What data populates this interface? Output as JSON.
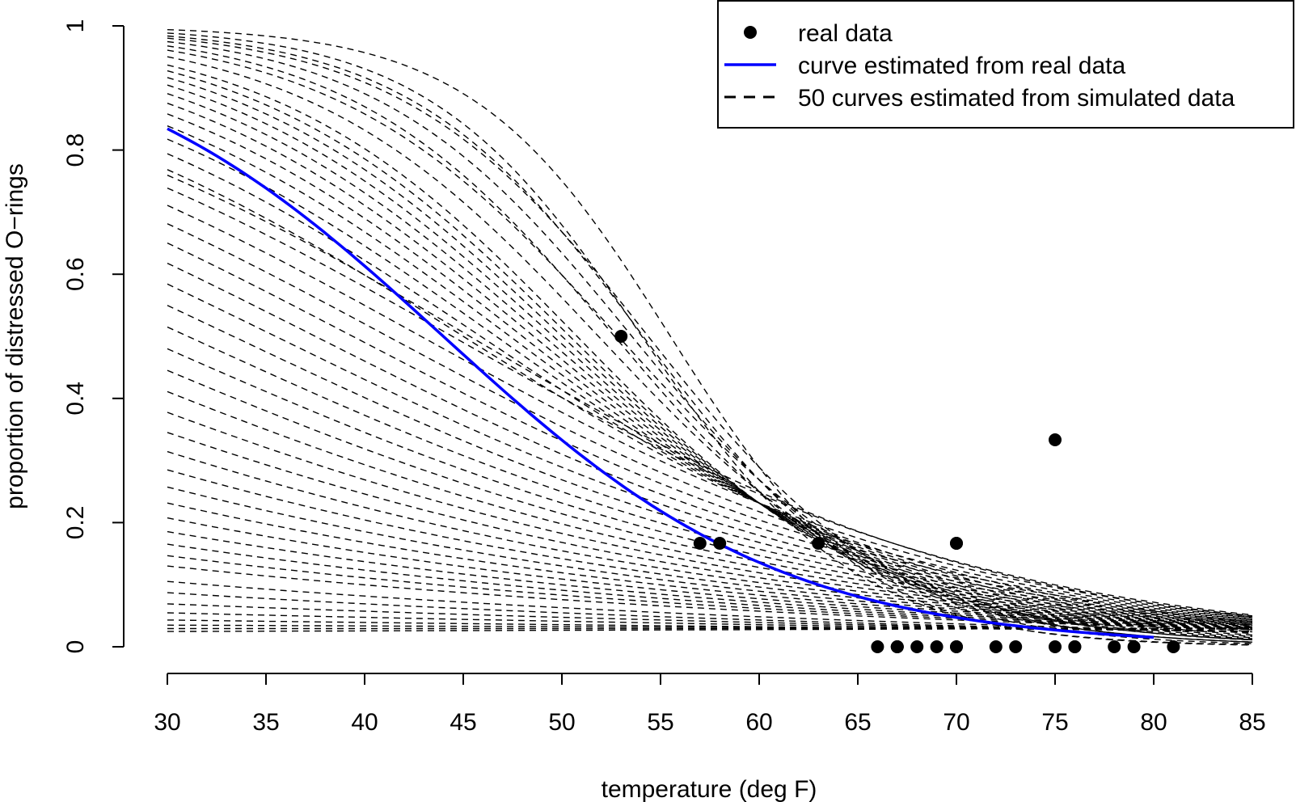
{
  "chart_data": {
    "type": "line",
    "xlabel": "temperature (deg F)",
    "ylabel": "proportion of distressed O−rings",
    "xlim": [
      30,
      85
    ],
    "ylim": [
      0,
      1
    ],
    "x_ticks": [
      "30",
      "35",
      "40",
      "45",
      "50",
      "55",
      "60",
      "65",
      "70",
      "75",
      "80",
      "85"
    ],
    "y_ticks": [
      "0",
      "0.2",
      "0.4",
      "0.6",
      "0.8",
      "1"
    ],
    "grid": false,
    "legend": {
      "placement": "top-right",
      "entries": [
        {
          "label": "real data",
          "style": "point"
        },
        {
          "label": "curve estimated from real data",
          "style": "solid",
          "color": "#0000ff"
        },
        {
          "label": "50 curves estimated from simulated data",
          "style": "dashed",
          "color": "#000000"
        }
      ]
    },
    "real_data": {
      "name": "real data",
      "x": [
        53,
        57,
        58,
        63,
        66,
        67,
        67,
        67,
        68,
        69,
        70,
        70,
        70,
        70,
        72,
        73,
        75,
        75,
        76,
        76,
        78,
        79,
        81
      ],
      "y": [
        0.5,
        0.1667,
        0.1667,
        0.1667,
        0,
        0,
        0,
        0,
        0,
        0,
        0,
        0.1667,
        0,
        0.1667,
        0,
        0,
        0,
        0.3333,
        0,
        0,
        0,
        0,
        0
      ]
    },
    "fitted_curve": {
      "name": "curve estimated from real data",
      "model": "logistic",
      "intercept": 5.085,
      "slope": -0.1156,
      "x_range": [
        30,
        80
      ],
      "color": "#0000ff"
    },
    "simulated_curves": {
      "name": "50 curves estimated from simulated data",
      "model": "logistic",
      "x_range": [
        30,
        85
      ],
      "color": "#000000",
      "params": [
        [
          11.1,
          -0.2
        ],
        [
          10.0,
          -0.185
        ],
        [
          9.2,
          -0.17
        ],
        [
          8.7,
          -0.16
        ],
        [
          8.3,
          -0.155
        ],
        [
          7.9,
          -0.15
        ],
        [
          7.4,
          -0.14
        ],
        [
          7.0,
          -0.135
        ],
        [
          6.6,
          -0.13
        ],
        [
          6.3,
          -0.125
        ],
        [
          6.0,
          -0.12
        ],
        [
          5.7,
          -0.115
        ],
        [
          5.4,
          -0.11
        ],
        [
          5.1,
          -0.105
        ],
        [
          4.8,
          -0.1
        ],
        [
          4.5,
          -0.095
        ],
        [
          4.2,
          -0.09
        ],
        [
          3.9,
          -0.085
        ],
        [
          3.6,
          -0.08
        ],
        [
          3.4,
          -0.075
        ],
        [
          3.2,
          -0.072
        ],
        [
          3.0,
          -0.07
        ],
        [
          2.8,
          -0.068
        ],
        [
          2.6,
          -0.066
        ],
        [
          2.4,
          -0.064
        ],
        [
          2.2,
          -0.062
        ],
        [
          2.0,
          -0.06
        ],
        [
          1.8,
          -0.058
        ],
        [
          1.6,
          -0.056
        ],
        [
          1.4,
          -0.054
        ],
        [
          1.2,
          -0.052
        ],
        [
          1.0,
          -0.05
        ],
        [
          0.8,
          -0.048
        ],
        [
          0.6,
          -0.046
        ],
        [
          0.4,
          -0.044
        ],
        [
          0.2,
          -0.042
        ],
        [
          0.0,
          -0.04
        ],
        [
          -0.2,
          -0.038
        ],
        [
          -0.4,
          -0.036
        ],
        [
          -0.6,
          -0.034
        ],
        [
          -0.8,
          -0.032
        ],
        [
          -1.0,
          -0.03
        ],
        [
          -1.3,
          -0.028
        ],
        [
          -1.6,
          -0.025
        ],
        [
          -2.0,
          -0.02
        ],
        [
          -2.4,
          -0.015
        ],
        [
          -2.8,
          -0.01
        ],
        [
          -3.2,
          -0.004
        ],
        [
          -3.5,
          0.0
        ],
        [
          -3.8,
          0.004
        ]
      ]
    }
  }
}
